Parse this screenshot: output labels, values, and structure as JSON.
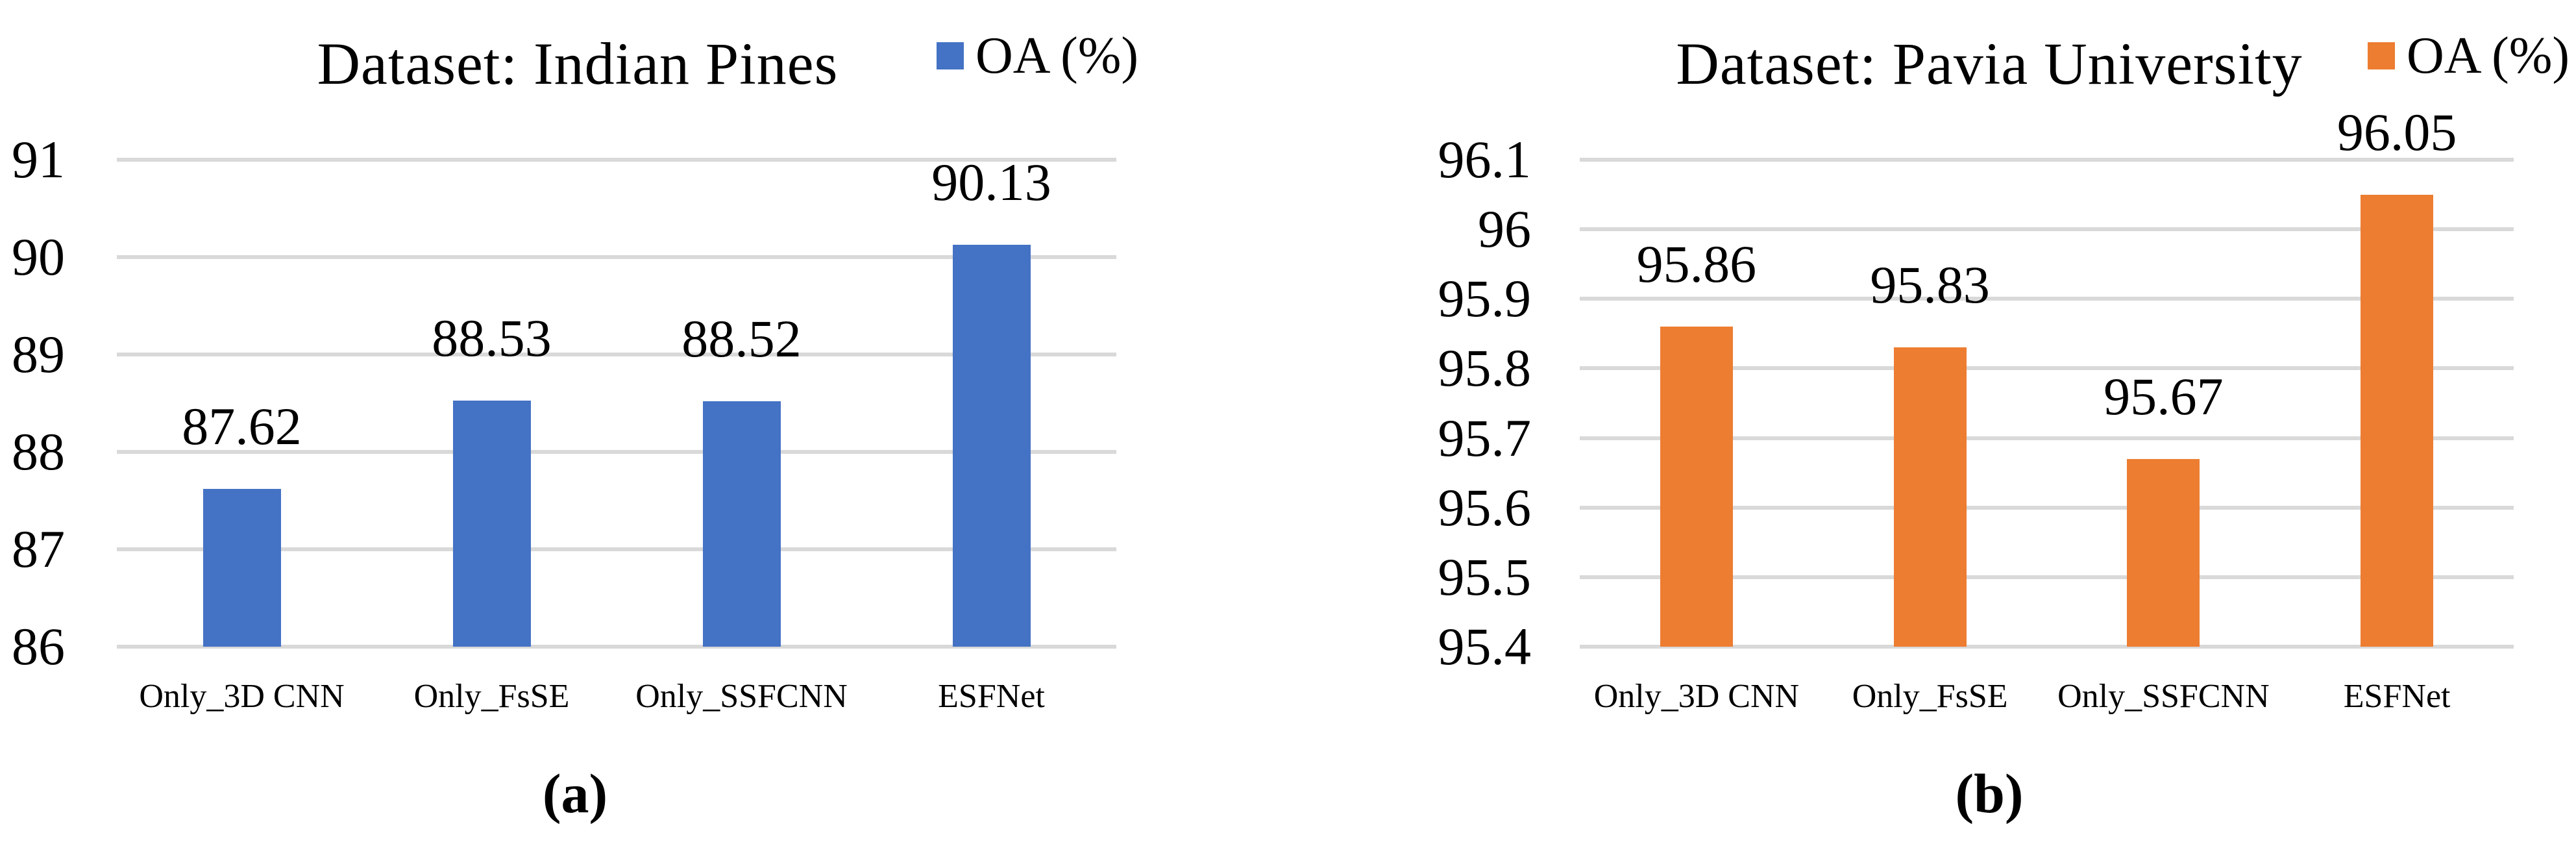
{
  "figure": {
    "sublabels": [
      "(a)",
      "(b)"
    ],
    "gridline_color": "#D9D9D9",
    "background_color": "#FFFFFF"
  },
  "chart_data": [
    {
      "type": "bar",
      "title": "Dataset: Indian Pines",
      "legend_label": "OA (%)",
      "series_name": "OA (%)",
      "color": "#4472C4",
      "categories": [
        "Only_3D CNN",
        "Only_FsSE",
        "Only_SSFCNN",
        "ESFNet"
      ],
      "values": [
        87.62,
        88.53,
        88.52,
        90.13
      ],
      "data_labels": [
        "87.62",
        "88.53",
        "88.52",
        "90.13"
      ],
      "xlabel": "",
      "ylabel": "",
      "ylim": [
        86,
        91
      ],
      "ytick_labels": [
        "91",
        "90",
        "89",
        "88",
        "87",
        "86"
      ],
      "ytick_values": [
        91,
        90,
        89,
        88,
        87,
        86
      ],
      "grid": "horizontal",
      "legend_position": "top-right",
      "sublabel": "(a)"
    },
    {
      "type": "bar",
      "title": "Dataset: Pavia University",
      "legend_label": "OA (%)",
      "series_name": "OA (%)",
      "color": "#ED7D31",
      "categories": [
        "Only_3D CNN",
        "Only_FsSE",
        "Only_SSFCNN",
        "ESFNet"
      ],
      "values": [
        95.86,
        95.83,
        95.67,
        96.05
      ],
      "data_labels": [
        "95.86",
        "95.83",
        "95.67",
        "96.05"
      ],
      "xlabel": "",
      "ylabel": "",
      "ylim": [
        95.4,
        96.1
      ],
      "ytick_labels": [
        "96.1",
        "96",
        "95.9",
        "95.8",
        "95.7",
        "95.6",
        "95.5",
        "95.4"
      ],
      "ytick_values": [
        96.1,
        96.0,
        95.9,
        95.8,
        95.7,
        95.6,
        95.5,
        95.4
      ],
      "grid": "horizontal",
      "legend_position": "top-right",
      "sublabel": "(b)"
    }
  ]
}
